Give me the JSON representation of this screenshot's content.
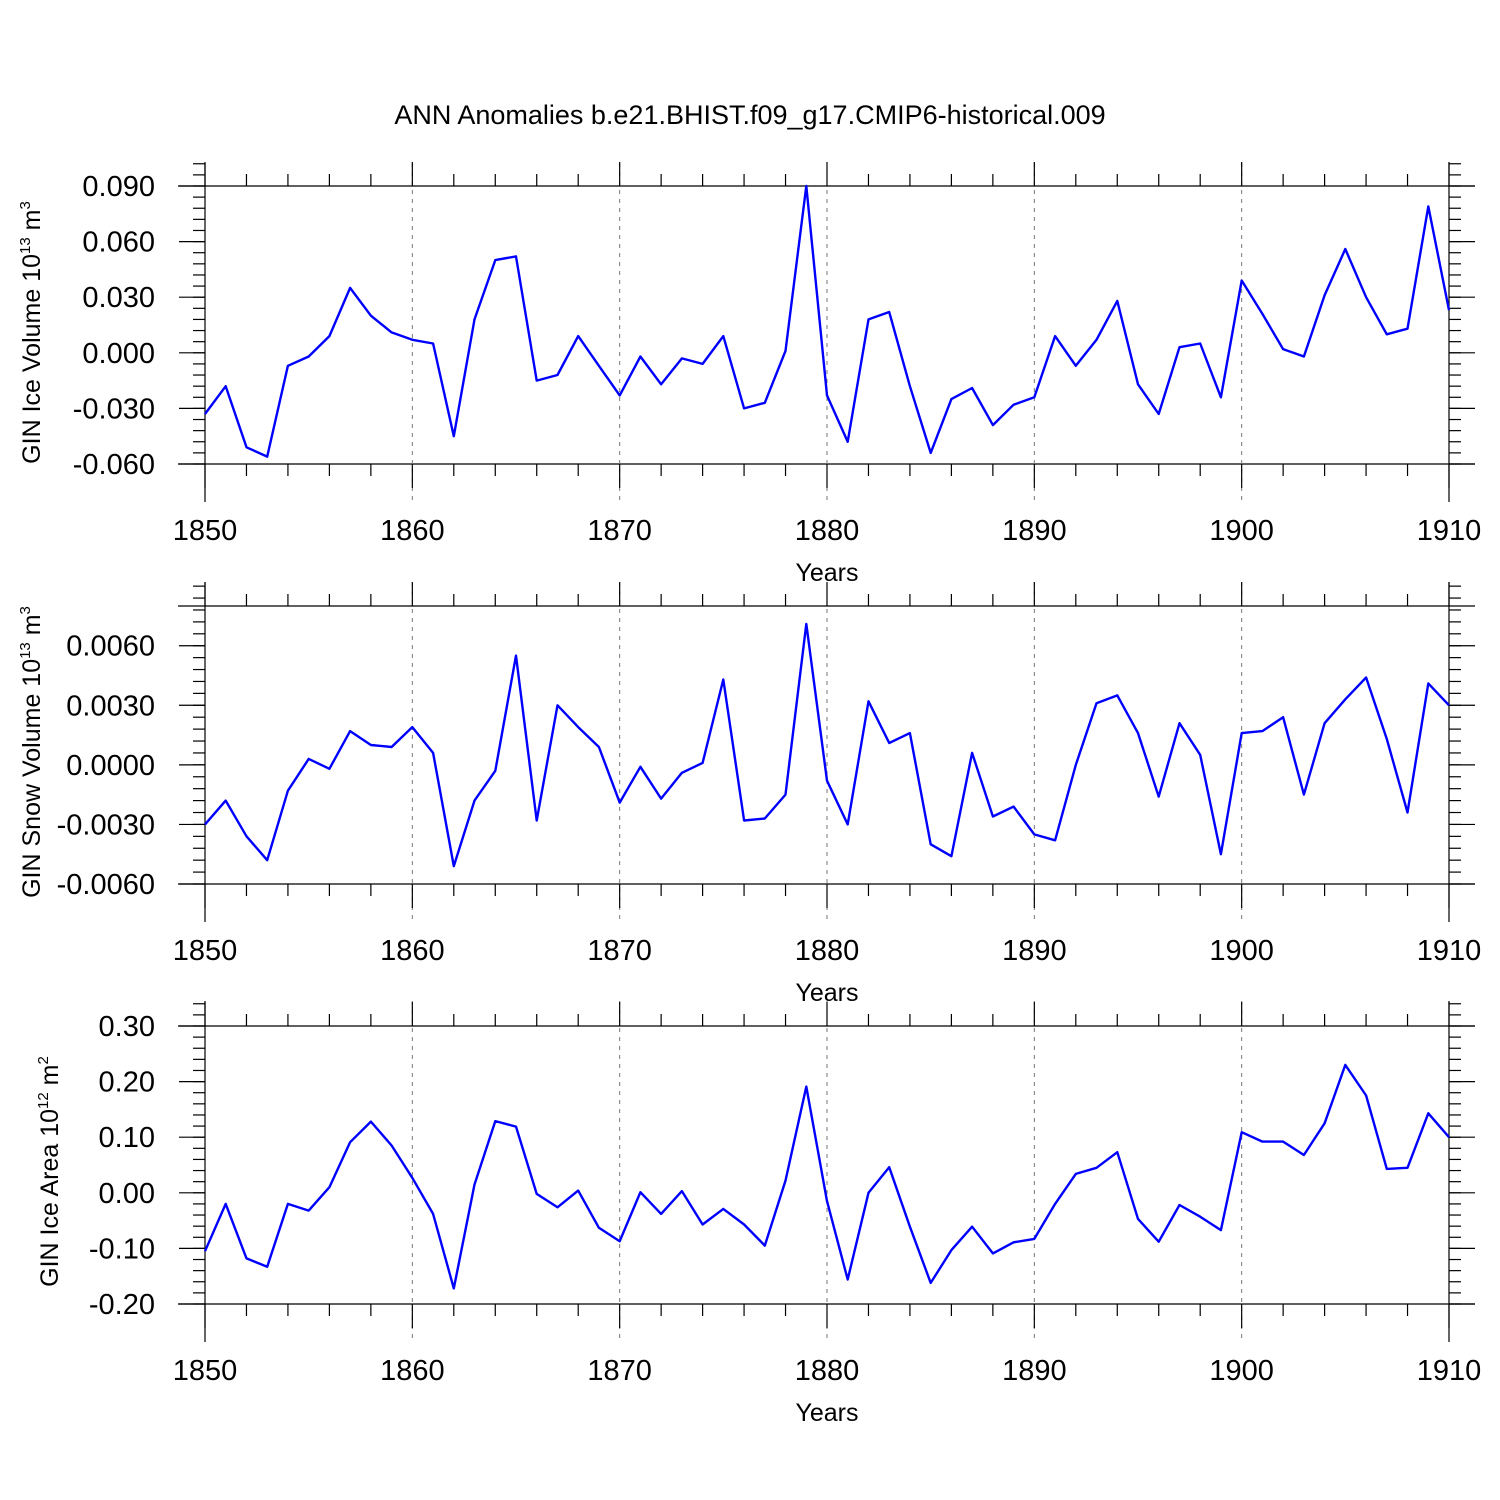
{
  "title": "ANN Anomalies b.e21.BHIST.f09_g17.CMIP6-historical.009",
  "chart_data": [
    {
      "type": "line",
      "name": "ice-volume",
      "ylabel": "GIN Ice Volume 10",
      "ylabel_exp": "13",
      "ylabel_unit": " m",
      "ylabel_unit_exp": "3",
      "xlabel": "Years",
      "line_color": "#0000ff",
      "xlim": [
        1850,
        1910
      ],
      "ylim": [
        -0.06,
        0.09
      ],
      "yticks": [
        -0.06,
        -0.03,
        0.0,
        0.03,
        0.06,
        0.09
      ],
      "ytick_labels": [
        "-0.060",
        "-0.030",
        "0.000",
        "0.030",
        "0.060",
        "0.090"
      ],
      "xticks": [
        1850,
        1860,
        1870,
        1880,
        1890,
        1900,
        1910
      ],
      "xtick_labels": [
        "1850",
        "1860",
        "1870",
        "1880",
        "1890",
        "1900",
        "1910"
      ],
      "x": [
        1850,
        1851,
        1852,
        1853,
        1854,
        1855,
        1856,
        1857,
        1858,
        1859,
        1860,
        1861,
        1862,
        1863,
        1864,
        1865,
        1866,
        1867,
        1868,
        1869,
        1870,
        1871,
        1872,
        1873,
        1874,
        1875,
        1876,
        1877,
        1878,
        1879,
        1880,
        1881,
        1882,
        1883,
        1884,
        1885,
        1886,
        1887,
        1888,
        1889,
        1890,
        1891,
        1892,
        1893,
        1894,
        1895,
        1896,
        1897,
        1898,
        1899,
        1900,
        1901,
        1902,
        1903,
        1904,
        1905,
        1906,
        1907,
        1908,
        1909,
        1910
      ],
      "values": [
        -0.033,
        -0.018,
        -0.051,
        -0.056,
        -0.007,
        -0.002,
        0.009,
        0.035,
        0.02,
        0.011,
        0.007,
        0.005,
        -0.045,
        0.018,
        0.05,
        0.052,
        -0.015,
        -0.012,
        0.009,
        -0.007,
        -0.023,
        -0.002,
        -0.017,
        -0.003,
        -0.006,
        0.009,
        -0.03,
        -0.027,
        0.001,
        0.09,
        -0.023,
        -0.048,
        0.018,
        0.022,
        -0.018,
        -0.054,
        -0.025,
        -0.019,
        -0.039,
        -0.028,
        -0.024,
        0.009,
        -0.007,
        0.007,
        0.028,
        -0.017,
        -0.033,
        0.003,
        0.005,
        -0.024,
        0.039,
        0.021,
        0.002,
        -0.002,
        0.031,
        0.056,
        0.03,
        0.01,
        0.013,
        0.079,
        0.023
      ]
    },
    {
      "type": "line",
      "name": "snow-volume",
      "ylabel": "GIN Snow Volume 10",
      "ylabel_exp": "13",
      "ylabel_unit": " m",
      "ylabel_unit_exp": "3",
      "xlabel": "Years",
      "line_color": "#0000ff",
      "xlim": [
        1850,
        1910
      ],
      "ylim": [
        -0.006,
        0.008
      ],
      "yticks": [
        -0.006,
        -0.003,
        0.0,
        0.003,
        0.006
      ],
      "ytick_labels": [
        "-0.0060",
        "-0.0030",
        "0.0000",
        "0.0030",
        "0.0060"
      ],
      "xticks": [
        1850,
        1860,
        1870,
        1880,
        1890,
        1900,
        1910
      ],
      "xtick_labels": [
        "1850",
        "1860",
        "1870",
        "1880",
        "1890",
        "1900",
        "1910"
      ],
      "x": [
        1850,
        1851,
        1852,
        1853,
        1854,
        1855,
        1856,
        1857,
        1858,
        1859,
        1860,
        1861,
        1862,
        1863,
        1864,
        1865,
        1866,
        1867,
        1868,
        1869,
        1870,
        1871,
        1872,
        1873,
        1874,
        1875,
        1876,
        1877,
        1878,
        1879,
        1880,
        1881,
        1882,
        1883,
        1884,
        1885,
        1886,
        1887,
        1888,
        1889,
        1890,
        1891,
        1892,
        1893,
        1894,
        1895,
        1896,
        1897,
        1898,
        1899,
        1900,
        1901,
        1902,
        1903,
        1904,
        1905,
        1906,
        1907,
        1908,
        1909,
        1910
      ],
      "values": [
        -0.003,
        -0.0018,
        -0.0036,
        -0.0048,
        -0.0013,
        0.0003,
        -0.0002,
        0.0017,
        0.001,
        0.0009,
        0.0019,
        0.0006,
        -0.0051,
        -0.0018,
        -0.0003,
        0.0055,
        -0.0028,
        0.003,
        0.0019,
        0.0009,
        -0.0019,
        -0.0001,
        -0.0017,
        -0.0004,
        0.0001,
        0.0043,
        -0.0028,
        -0.0027,
        -0.0015,
        0.0071,
        -0.0008,
        -0.003,
        0.0032,
        0.0011,
        0.0016,
        -0.004,
        -0.0046,
        0.0006,
        -0.0026,
        -0.0021,
        -0.0035,
        -0.0038,
        0.0,
        0.0031,
        0.0035,
        0.0016,
        -0.0016,
        0.0021,
        0.0005,
        -0.0045,
        0.0016,
        0.0017,
        0.0024,
        -0.0015,
        0.0021,
        0.0033,
        0.0044,
        0.0013,
        -0.0024,
        0.0041,
        0.003
      ]
    },
    {
      "type": "line",
      "name": "ice-area",
      "ylabel": "GIN Ice Area 10",
      "ylabel_exp": "12",
      "ylabel_unit": " m",
      "ylabel_unit_exp": "2",
      "xlabel": "Years",
      "line_color": "#0000ff",
      "xlim": [
        1850,
        1910
      ],
      "ylim": [
        -0.2,
        0.3
      ],
      "yticks": [
        -0.2,
        -0.1,
        0.0,
        0.1,
        0.2,
        0.3
      ],
      "ytick_labels": [
        "-0.20",
        "-0.10",
        "0.00",
        "0.10",
        "0.20",
        "0.30"
      ],
      "xticks": [
        1850,
        1860,
        1870,
        1880,
        1890,
        1900,
        1910
      ],
      "xtick_labels": [
        "1850",
        "1860",
        "1870",
        "1880",
        "1890",
        "1900",
        "1910"
      ],
      "x": [
        1850,
        1851,
        1852,
        1853,
        1854,
        1855,
        1856,
        1857,
        1858,
        1859,
        1860,
        1861,
        1862,
        1863,
        1864,
        1865,
        1866,
        1867,
        1868,
        1869,
        1870,
        1871,
        1872,
        1873,
        1874,
        1875,
        1876,
        1877,
        1878,
        1879,
        1880,
        1881,
        1882,
        1883,
        1884,
        1885,
        1886,
        1887,
        1888,
        1889,
        1890,
        1891,
        1892,
        1893,
        1894,
        1895,
        1896,
        1897,
        1898,
        1899,
        1900,
        1901,
        1902,
        1903,
        1904,
        1905,
        1906,
        1907,
        1908,
        1909,
        1910
      ],
      "values": [
        -0.105,
        -0.02,
        -0.118,
        -0.133,
        -0.02,
        -0.032,
        0.01,
        0.091,
        0.128,
        0.085,
        0.027,
        -0.038,
        -0.172,
        0.015,
        0.129,
        0.119,
        -0.002,
        -0.026,
        0.004,
        -0.063,
        -0.087,
        0.001,
        -0.038,
        0.003,
        -0.057,
        -0.029,
        -0.057,
        -0.095,
        0.022,
        0.191,
        -0.015,
        -0.156,
        0.0,
        0.046,
        -0.061,
        -0.162,
        -0.103,
        -0.061,
        -0.109,
        -0.089,
        -0.083,
        -0.02,
        0.034,
        0.045,
        0.073,
        -0.047,
        -0.088,
        -0.022,
        -0.043,
        -0.067,
        0.109,
        0.092,
        0.092,
        0.068,
        0.125,
        0.23,
        0.175,
        0.043,
        0.045,
        0.143,
        0.1
      ]
    }
  ]
}
